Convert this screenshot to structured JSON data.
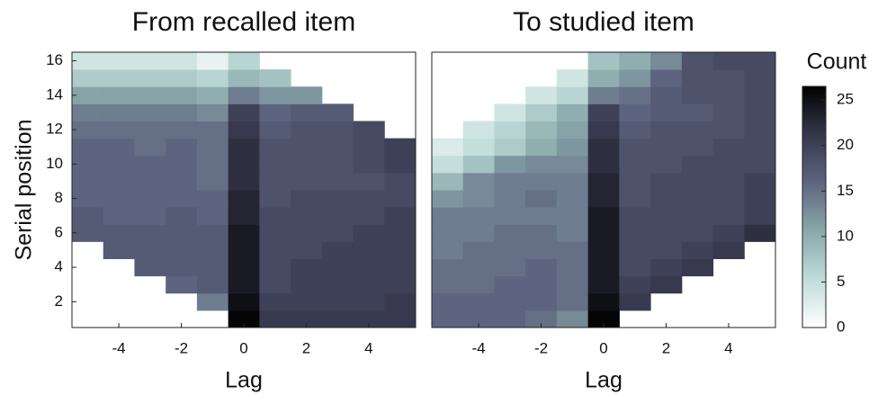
{
  "chart_data": [
    {
      "type": "heatmap",
      "title": "From recalled item",
      "xlabel": "Lag",
      "ylabel": "Serial position",
      "x": [
        -5,
        -4,
        -3,
        -2,
        -1,
        0,
        1,
        2,
        3,
        4,
        5
      ],
      "y": [
        1,
        2,
        3,
        4,
        5,
        6,
        7,
        8,
        9,
        10,
        11,
        12,
        13,
        14,
        15,
        16
      ],
      "xlim": [
        -5.5,
        5.5
      ],
      "ylim": [
        0.5,
        16.5
      ],
      "xticks": [
        -4,
        -2,
        0,
        2,
        4
      ],
      "yticks": [
        2,
        4,
        6,
        8,
        10,
        12,
        14,
        16
      ],
      "values": [
        [
          null,
          null,
          null,
          null,
          null,
          26,
          21,
          21,
          21,
          21,
          21
        ],
        [
          null,
          null,
          null,
          null,
          14,
          25,
          20,
          20,
          20,
          20,
          21
        ],
        [
          null,
          null,
          null,
          16,
          17,
          24,
          19,
          20,
          20,
          20,
          20
        ],
        [
          null,
          null,
          17,
          17,
          17,
          24,
          19,
          20,
          20,
          20,
          20
        ],
        [
          null,
          17,
          17,
          17,
          17,
          24,
          19,
          19,
          20,
          20,
          20
        ],
        [
          17,
          17,
          17,
          17,
          17,
          24,
          19,
          19,
          19,
          20,
          20
        ],
        [
          17,
          16,
          16,
          17,
          16,
          23,
          19,
          19,
          19,
          19,
          20
        ],
        [
          16,
          16,
          16,
          16,
          16,
          23,
          18,
          19,
          19,
          19,
          19
        ],
        [
          16,
          16,
          16,
          16,
          15,
          22,
          18,
          18,
          18,
          18,
          19
        ],
        [
          16,
          16,
          16,
          16,
          15,
          22,
          18,
          18,
          18,
          19,
          20
        ],
        [
          16,
          16,
          15,
          16,
          15,
          22,
          18,
          18,
          18,
          19,
          20
        ],
        [
          15,
          15,
          15,
          15,
          15,
          21,
          17,
          18,
          18,
          19,
          null
        ],
        [
          14,
          14,
          14,
          14,
          13,
          20,
          16,
          17,
          17,
          null,
          null
        ],
        [
          11,
          11,
          11,
          11,
          10,
          14,
          12,
          12,
          null,
          null,
          null
        ],
        [
          7,
          7,
          7,
          7,
          6,
          9,
          8,
          null,
          null,
          null,
          null
        ],
        [
          4,
          4,
          4,
          4,
          2,
          6,
          null,
          null,
          null,
          null,
          null
        ]
      ]
    },
    {
      "type": "heatmap",
      "title": "To studied item",
      "xlabel": "Lag",
      "x": [
        -5,
        -4,
        -3,
        -2,
        -1,
        0,
        1,
        2,
        3,
        4,
        5
      ],
      "y": [
        1,
        2,
        3,
        4,
        5,
        6,
        7,
        8,
        9,
        10,
        11,
        12,
        13,
        14,
        15,
        16
      ],
      "xlim": [
        -5.5,
        5.5
      ],
      "ylim": [
        0.5,
        16.5
      ],
      "xticks": [
        -4,
        -2,
        0,
        2,
        4
      ],
      "values": [
        [
          16,
          16,
          16,
          15,
          13,
          26,
          null,
          null,
          null,
          null,
          null
        ],
        [
          16,
          16,
          16,
          16,
          15,
          25,
          21,
          null,
          null,
          null,
          null
        ],
        [
          15,
          15,
          16,
          16,
          15,
          24,
          20,
          21,
          null,
          null,
          null
        ],
        [
          15,
          15,
          15,
          16,
          15,
          24,
          19,
          20,
          21,
          null,
          null
        ],
        [
          14,
          15,
          15,
          15,
          15,
          24,
          19,
          19,
          20,
          21,
          null
        ],
        [
          14,
          14,
          15,
          15,
          14,
          24,
          19,
          19,
          19,
          20,
          22
        ],
        [
          14,
          14,
          14,
          14,
          14,
          24,
          19,
          19,
          19,
          19,
          20
        ],
        [
          12,
          13,
          14,
          15,
          14,
          23,
          18,
          19,
          19,
          19,
          20
        ],
        [
          9,
          13,
          14,
          14,
          14,
          23,
          18,
          19,
          19,
          19,
          20
        ],
        [
          5,
          8,
          12,
          13,
          13,
          22,
          18,
          18,
          19,
          19,
          19
        ],
        [
          3,
          5,
          7,
          10,
          12,
          22,
          18,
          18,
          18,
          19,
          19
        ],
        [
          null,
          4,
          6,
          9,
          11,
          21,
          17,
          18,
          18,
          18,
          19
        ],
        [
          null,
          null,
          4,
          7,
          10,
          20,
          16,
          17,
          17,
          18,
          19
        ],
        [
          null,
          null,
          null,
          4,
          6,
          14,
          15,
          17,
          18,
          18,
          19
        ],
        [
          null,
          null,
          null,
          null,
          4,
          10,
          12,
          16,
          18,
          18,
          19
        ],
        [
          null,
          null,
          null,
          null,
          null,
          8,
          10,
          13,
          18,
          19,
          19
        ]
      ],
      "colorbar": {
        "title": "Count",
        "lim": [
          0,
          26.5
        ],
        "ticks": [
          0,
          5,
          10,
          15,
          20,
          25
        ],
        "colors": [
          "#ffffff",
          "#bfdcd9",
          "#8aa8aa",
          "#5e6580",
          "#36374c",
          "#000000"
        ]
      }
    }
  ]
}
